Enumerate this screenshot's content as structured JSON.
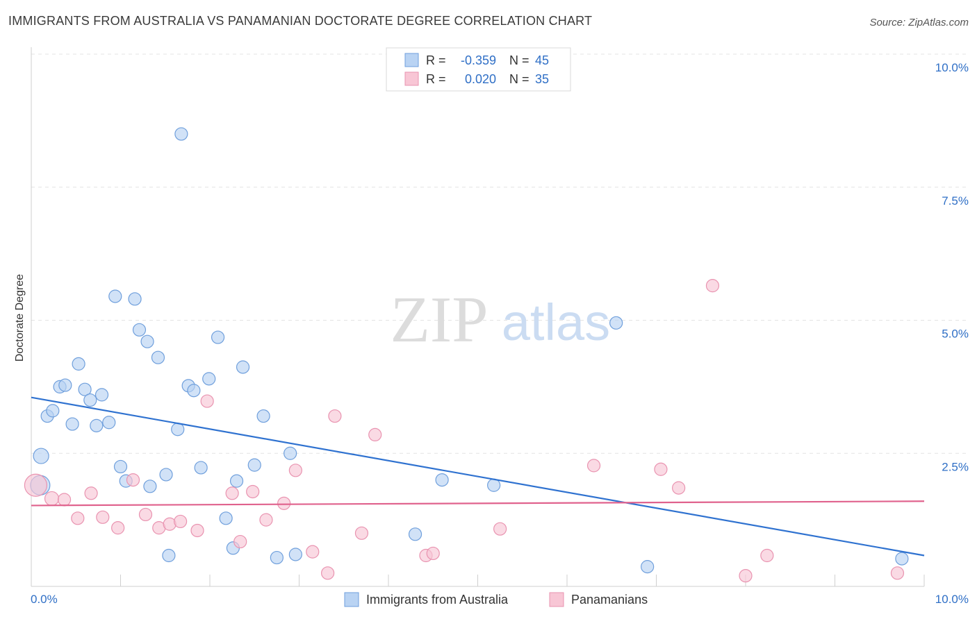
{
  "chart_data": {
    "type": "scatter",
    "title": "IMMIGRANTS FROM AUSTRALIA VS PANAMANIAN DOCTORATE DEGREE CORRELATION CHART",
    "source": "Source: ZipAtlas.com",
    "ylabel": "Doctorate Degree",
    "xlim": [
      0,
      10
    ],
    "ylim": [
      0,
      10
    ],
    "x_tick_labels": [
      "0.0%",
      "10.0%"
    ],
    "y_ticks": [
      2.5,
      5.0,
      7.5,
      10.0
    ],
    "y_tick_labels": [
      "2.5%",
      "5.0%",
      "7.5%",
      "10.0%"
    ],
    "watermark": {
      "zip": "ZIP",
      "atlas": "atlas"
    },
    "legend": [
      {
        "r_label": "R =",
        "r_value": "-0.359",
        "n_label": "N =",
        "n_value": "45"
      },
      {
        "r_label": "R =",
        "r_value": "0.020",
        "n_label": "N =",
        "n_value": "35"
      }
    ],
    "colors": {
      "blue_fill": "#b9d3f3",
      "blue_stroke": "#6f9fdc",
      "blue_line": "#2f72d0",
      "pink_fill": "#f8c6d5",
      "pink_stroke": "#e993b0",
      "pink_line": "#e0628d",
      "value_text": "#2f6fc6"
    },
    "series": [
      {
        "name": "Immigrants from Australia",
        "trend": {
          "x0": 0.0,
          "y0": 3.55,
          "x1": 10.0,
          "y1": 0.58
        },
        "points": [
          [
            0.1,
            1.9,
            14
          ],
          [
            0.11,
            2.45,
            11
          ],
          [
            0.18,
            3.2,
            9
          ],
          [
            0.24,
            3.3,
            9
          ],
          [
            0.32,
            3.75,
            9
          ],
          [
            0.38,
            3.78,
            9
          ],
          [
            0.46,
            3.05,
            9
          ],
          [
            0.53,
            4.18,
            9
          ],
          [
            0.6,
            3.7,
            9
          ],
          [
            0.66,
            3.5,
            9
          ],
          [
            0.73,
            3.02,
            9
          ],
          [
            0.79,
            3.6,
            9
          ],
          [
            0.87,
            3.08,
            9
          ],
          [
            0.94,
            5.45,
            9
          ],
          [
            1.0,
            2.25,
            9
          ],
          [
            1.06,
            1.98,
            9
          ],
          [
            1.16,
            5.4,
            9
          ],
          [
            1.21,
            4.82,
            9
          ],
          [
            1.3,
            4.6,
            9
          ],
          [
            1.33,
            1.88,
            9
          ],
          [
            1.42,
            4.3,
            9
          ],
          [
            1.51,
            2.1,
            9
          ],
          [
            1.54,
            0.58,
            9
          ],
          [
            1.64,
            2.95,
            9
          ],
          [
            1.68,
            8.5,
            9
          ],
          [
            1.76,
            3.77,
            9
          ],
          [
            1.82,
            3.68,
            9
          ],
          [
            1.9,
            2.23,
            9
          ],
          [
            1.99,
            3.9,
            9
          ],
          [
            2.09,
            4.68,
            9
          ],
          [
            2.18,
            1.28,
            9
          ],
          [
            2.26,
            0.72,
            9
          ],
          [
            2.3,
            1.98,
            9
          ],
          [
            2.37,
            4.12,
            9
          ],
          [
            2.5,
            2.28,
            9
          ],
          [
            2.6,
            3.2,
            9
          ],
          [
            2.75,
            0.54,
            9
          ],
          [
            2.9,
            2.5,
            9
          ],
          [
            2.96,
            0.6,
            9
          ],
          [
            4.3,
            0.98,
            9
          ],
          [
            4.6,
            2.0,
            9
          ],
          [
            5.18,
            1.9,
            9
          ],
          [
            6.55,
            4.95,
            9
          ],
          [
            6.9,
            0.37,
            9
          ],
          [
            9.75,
            0.52,
            9
          ]
        ]
      },
      {
        "name": "Panamanians",
        "trend": {
          "x0": 0.0,
          "y0": 1.52,
          "x1": 10.0,
          "y1": 1.6
        },
        "points": [
          [
            0.05,
            1.9,
            16
          ],
          [
            0.23,
            1.65,
            10
          ],
          [
            0.37,
            1.63,
            9
          ],
          [
            0.52,
            1.28,
            9
          ],
          [
            0.67,
            1.75,
            9
          ],
          [
            0.8,
            1.3,
            9
          ],
          [
            0.97,
            1.1,
            9
          ],
          [
            1.14,
            2.0,
            9
          ],
          [
            1.28,
            1.35,
            9
          ],
          [
            1.43,
            1.1,
            9
          ],
          [
            1.55,
            1.17,
            9
          ],
          [
            1.67,
            1.22,
            9
          ],
          [
            1.86,
            1.05,
            9
          ],
          [
            1.97,
            3.48,
            9
          ],
          [
            2.25,
            1.75,
            9
          ],
          [
            2.34,
            0.84,
            9
          ],
          [
            2.48,
            1.78,
            9
          ],
          [
            2.63,
            1.25,
            9
          ],
          [
            2.83,
            1.56,
            9
          ],
          [
            2.96,
            2.18,
            9
          ],
          [
            3.15,
            0.65,
            9
          ],
          [
            3.32,
            0.25,
            9
          ],
          [
            3.4,
            3.2,
            9
          ],
          [
            3.7,
            1.0,
            9
          ],
          [
            3.85,
            2.85,
            9
          ],
          [
            4.42,
            0.58,
            9
          ],
          [
            4.5,
            0.62,
            9
          ],
          [
            5.25,
            1.08,
            9
          ],
          [
            6.3,
            2.27,
            9
          ],
          [
            7.05,
            2.2,
            9
          ],
          [
            7.25,
            1.85,
            9
          ],
          [
            7.63,
            5.65,
            9
          ],
          [
            8.0,
            0.2,
            9
          ],
          [
            8.24,
            0.58,
            9
          ],
          [
            9.7,
            0.25,
            9
          ]
        ]
      }
    ]
  }
}
